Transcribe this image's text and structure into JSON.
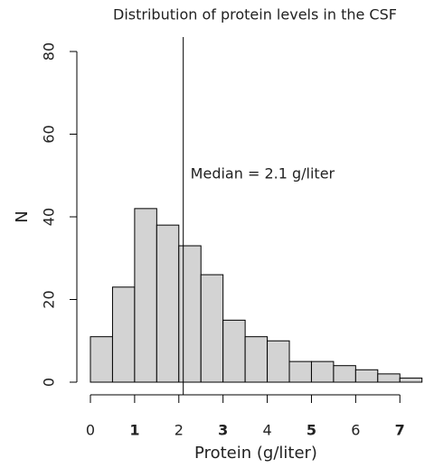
{
  "chart_data": {
    "type": "histogram",
    "title": "Distribution of protein levels in the CSF",
    "x_label": "Protein (g/liter)",
    "y_label": "N",
    "bins": [
      0,
      0.5,
      1,
      1.5,
      2,
      2.5,
      3,
      3.5,
      4,
      4.5,
      5,
      5.5,
      6,
      6.5,
      7,
      7.5
    ],
    "values": [
      11,
      23,
      42,
      38,
      33,
      26,
      15,
      11,
      10,
      5,
      5,
      4,
      3,
      2,
      1
    ],
    "color": "#d3d3d3",
    "xlim": [
      0,
      7.5
    ],
    "ylim": [
      0,
      80
    ],
    "xticks": [
      0,
      1,
      2,
      3,
      4,
      5,
      6,
      7
    ],
    "yticks": [
      0,
      20,
      40,
      60,
      80
    ],
    "median": 2.1,
    "annotation": "Median = 2.1 g/liter"
  }
}
